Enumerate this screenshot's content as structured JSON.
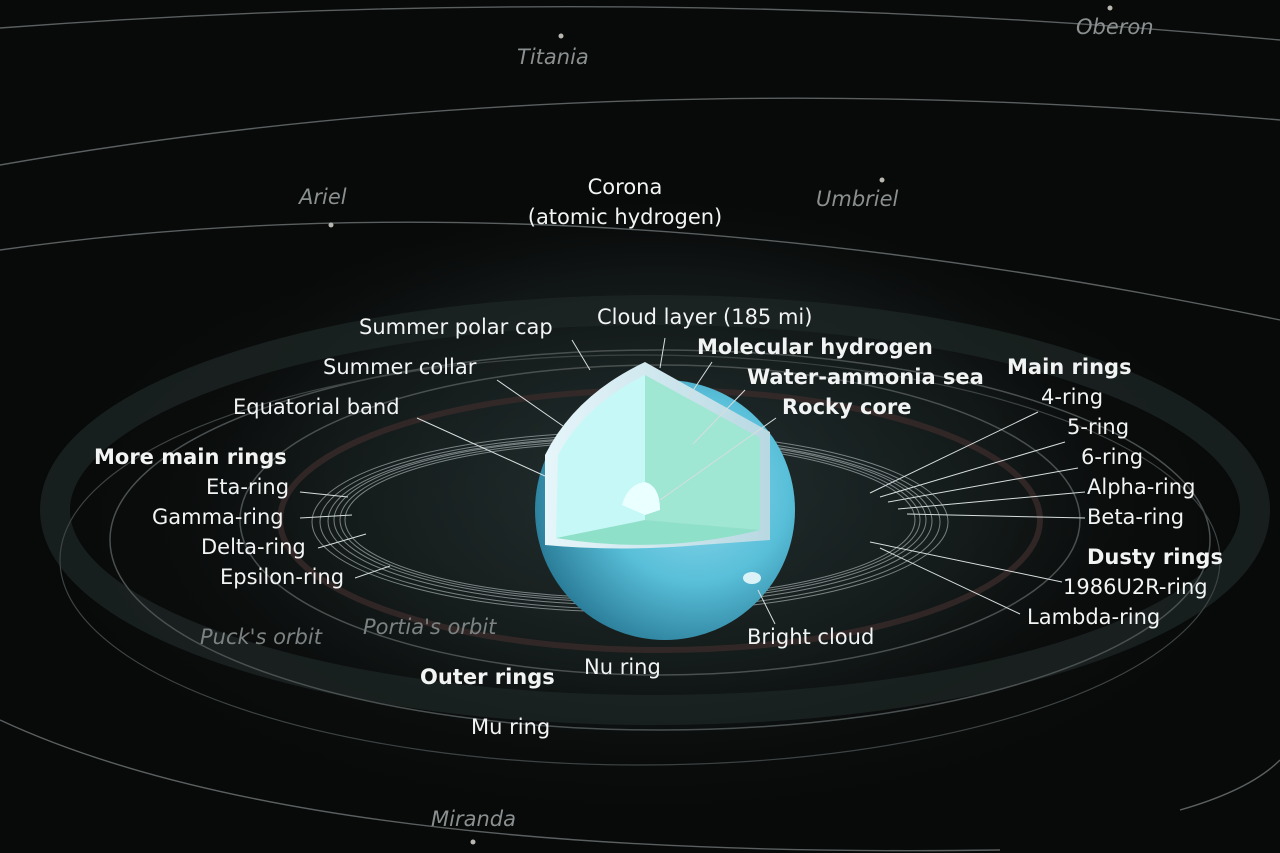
{
  "moons": {
    "titania": "Titania",
    "oberon": "Oberon",
    "ariel": "Ariel",
    "umbriel": "Umbriel",
    "miranda": "Miranda"
  },
  "atmosphere": {
    "corona_line1": "Corona",
    "corona_line2": "(atomic hydrogen)",
    "summer_polar_cap": "Summer polar cap",
    "summer_collar": "Summer collar",
    "equatorial_band": "Equatorial band",
    "cloud_layer": "Cloud layer (185 mi)",
    "bright_cloud": "Bright cloud"
  },
  "interior": {
    "molecular_hydrogen": "Molecular hydrogen",
    "water_ammonia_sea": "Water-ammonia sea",
    "rocky_core": "Rocky core"
  },
  "more_main_rings": {
    "heading": "More main rings",
    "items": [
      "Eta-ring",
      "Gamma-ring",
      "Delta-ring",
      "Epsilon-ring"
    ]
  },
  "main_rings": {
    "heading": "Main rings",
    "items": [
      "4-ring",
      "5-ring",
      "6-ring",
      "Alpha-ring",
      "Beta-ring"
    ]
  },
  "dusty_rings": {
    "heading": "Dusty rings",
    "items": [
      "1986U2R-ring",
      "Lambda-ring"
    ]
  },
  "outer_rings": {
    "heading": "Outer rings",
    "nu_ring": "Nu ring",
    "mu_ring": "Mu ring"
  },
  "orbits": {
    "puck": "Puck's orbit",
    "portia": "Portia's orbit"
  },
  "colors": {
    "planet_light": "#bfeef4",
    "planet_mid": "#5fc6de",
    "planet_dark": "#2f86a4",
    "sea": "#8fe3cf",
    "core": "#e8fbfb",
    "text": "#f2f4f4",
    "moon_text": "#8a8f8f"
  }
}
